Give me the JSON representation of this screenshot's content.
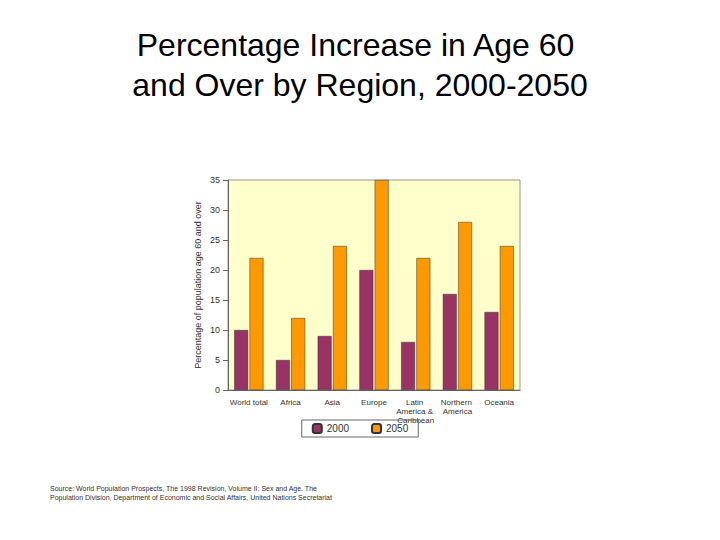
{
  "chart_data": {
    "type": "bar",
    "title": "Percentage Increase in Age 60 and Over by Region, 2000-2050",
    "y_label": "Percentage of population age 60 and over",
    "categories": [
      "World total",
      "Africa",
      "Asia",
      "Europe",
      "Latin America & Caribbean",
      "Northern America",
      "Oceania"
    ],
    "series": [
      {
        "name": "2000",
        "color": "#993366",
        "values": [
          10,
          5,
          9,
          20,
          8,
          16,
          13
        ]
      },
      {
        "name": "2050",
        "color": "#ff9900",
        "values": [
          22,
          12,
          24,
          35,
          22,
          28,
          24
        ]
      }
    ],
    "ylim": [
      0,
      35
    ],
    "yticks": [
      0,
      5,
      10,
      15,
      20,
      25,
      30,
      35
    ],
    "grid": false,
    "legend": "bottom",
    "annotations": [
      "Source: World Population Prospects, The 1998 Revision, Volume II: Sex and Age. The Population Division, Department of Economic and Social Affairs, United Nations Secretariat"
    ]
  }
}
